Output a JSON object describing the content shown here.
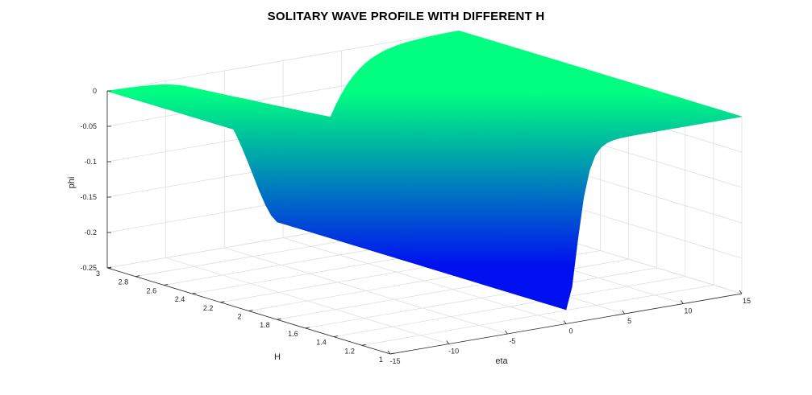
{
  "chart_data": {
    "type": "surface",
    "title": "SOLITARY WAVE PROFILE WITH DIFFERENT H",
    "xlabel": "eta",
    "ylabel": "H",
    "zlabel": "phi",
    "x_range": [
      -15,
      15
    ],
    "y_range": [
      1,
      3
    ],
    "z_range": [
      -0.25,
      0
    ],
    "x_ticks": [
      "-15",
      "-10",
      "-5",
      "0",
      "5",
      "10",
      "15"
    ],
    "y_ticks": [
      "1",
      "1.2",
      "1.4",
      "1.6",
      "1.8",
      "2",
      "2.2",
      "2.4",
      "2.6",
      "2.8",
      "3"
    ],
    "z_ticks": [
      "-0.25",
      "-0.2",
      "-0.15",
      "-0.1",
      "-0.05",
      "0"
    ],
    "profile": {
      "min_phi": -0.23,
      "eta_center": 0,
      "width_at_H1": 1.3,
      "width_at_H3": 3.9
    },
    "colormap": [
      "#0010f0",
      "#00ff80"
    ],
    "grid": true
  }
}
